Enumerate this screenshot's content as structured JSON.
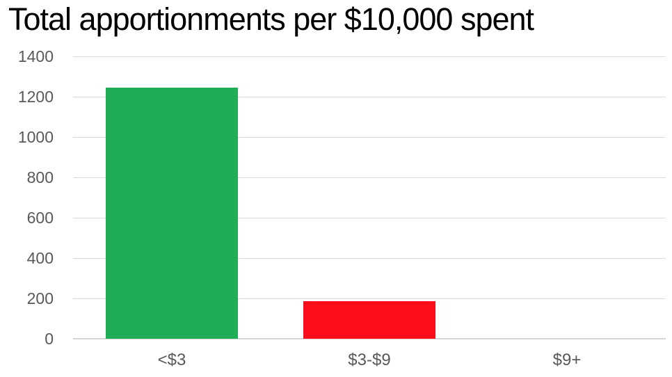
{
  "chart_data": {
    "type": "bar",
    "title": "Total apportionments per $10,000 spent",
    "categories": [
      "<$3",
      "$3-$9",
      "$9+"
    ],
    "values": [
      1245,
      185,
      0
    ],
    "bar_colors": [
      "#1fad55",
      "#fb0d1b",
      null
    ],
    "xlabel": "",
    "ylabel": "",
    "ylim": [
      0,
      1400
    ],
    "ytick_step": 200,
    "yticks": [
      0,
      200,
      400,
      600,
      800,
      1000,
      1200,
      1400
    ],
    "grid": true,
    "legend": "none",
    "colors": {
      "title": "#000000",
      "tick_label": "#595959",
      "gridline": "#d9d9d9",
      "axis_line": "#d5d5d5",
      "background": "#ffffff",
      "bar_green": "#1fad55",
      "bar_red": "#fb0d1b"
    }
  }
}
